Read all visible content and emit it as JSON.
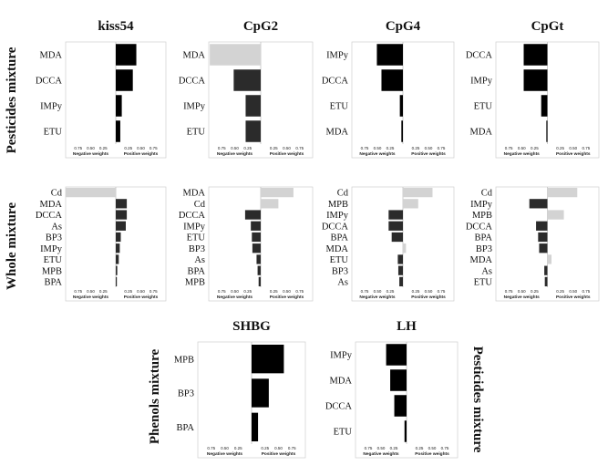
{
  "row_labels": {
    "pesticides": "Pesticides mixture",
    "whole": "Whole mixture",
    "phenols": "Phenols mixture",
    "pesticides_right": "Pesticides mixture"
  },
  "colors": {
    "negative": "#d3d3d3",
    "positive_light": "#d3d3d3"
  },
  "chart_data": [
    {
      "type": "bar",
      "orientation": "horizontal",
      "title": "kiss54",
      "categories": [
        "MDA",
        "DCCA",
        "IMPy",
        "ETU"
      ],
      "values": [
        0.41,
        0.34,
        0.12,
        0.09
      ],
      "colors": [
        "#000000",
        "#000000",
        "#000000",
        "#000000"
      ],
      "neg_ticks": [
        "0.75",
        "0.50",
        "0.25"
      ],
      "pos_ticks": [
        "0.25",
        "0.50",
        "0.75"
      ],
      "neg_label": "Negative weights",
      "pos_label": "Positive weights",
      "xlim": [
        -1,
        1
      ]
    },
    {
      "type": "bar",
      "orientation": "horizontal",
      "title": "CpG2",
      "categories": [
        "MDA",
        "DCCA",
        "IMPy",
        "ETU"
      ],
      "values": [
        -0.98,
        -0.52,
        -0.29,
        -0.29
      ],
      "colors": [
        "#d3d3d3",
        "#2b2b2b",
        "#2b2b2b",
        "#2b2b2b"
      ],
      "neg_ticks": [
        "0.75",
        "0.50",
        "0.25"
      ],
      "pos_ticks": [
        "0.25",
        "0.50",
        "0.75"
      ],
      "neg_label": "Negative weights",
      "pos_label": "Positive weights",
      "xlim": [
        -1,
        1
      ]
    },
    {
      "type": "bar",
      "orientation": "horizontal",
      "title": "CpG4",
      "categories": [
        "IMPy",
        "DCCA",
        "ETU",
        "MDA"
      ],
      "values": [
        -0.51,
        -0.42,
        -0.06,
        -0.03
      ],
      "colors": [
        "#000000",
        "#000000",
        "#000000",
        "#000000"
      ],
      "neg_ticks": [
        "0.75",
        "0.50",
        "0.25"
      ],
      "pos_ticks": [
        "0.25",
        "0.50",
        "0.75"
      ],
      "neg_label": "Negative weights",
      "pos_label": "Positive weights",
      "xlim": [
        -1,
        1
      ]
    },
    {
      "type": "bar",
      "orientation": "horizontal",
      "title": "CpGt",
      "categories": [
        "DCCA",
        "IMPy",
        "ETU",
        "MDA"
      ],
      "values": [
        -0.46,
        -0.46,
        -0.12,
        -0.02
      ],
      "colors": [
        "#000000",
        "#000000",
        "#000000",
        "#000000"
      ],
      "neg_ticks": [
        "0.75",
        "0.50",
        "0.25"
      ],
      "pos_ticks": [
        "0.25",
        "0.50",
        "0.75"
      ],
      "neg_label": "Negative weights",
      "pos_label": "Positive weights",
      "xlim": [
        -1,
        1
      ]
    },
    {
      "type": "bar",
      "orientation": "horizontal",
      "title": "",
      "categories": [
        "Cd",
        "MDA",
        "DCCA",
        "As",
        "BP3",
        "IMPy",
        "ETU",
        "MPB",
        "BPA"
      ],
      "values": [
        -1.0,
        0.22,
        0.22,
        0.2,
        0.1,
        0.08,
        0.06,
        0.03,
        0.01
      ],
      "colors": [
        "#d3d3d3",
        "#2b2b2b",
        "#2b2b2b",
        "#2b2b2b",
        "#2b2b2b",
        "#2b2b2b",
        "#2b2b2b",
        "#2b2b2b",
        "#2b2b2b"
      ],
      "neg_ticks": [
        "0.75",
        "0.50",
        "0.25"
      ],
      "pos_ticks": [
        "0.25",
        "0.50",
        "0.75"
      ],
      "neg_label": "Negative weights",
      "pos_label": "Positive weights",
      "xlim": [
        -1,
        1
      ]
    },
    {
      "type": "bar",
      "orientation": "horizontal",
      "title": "",
      "categories": [
        "MDA",
        "Cd",
        "DCCA",
        "IMPy",
        "ETU",
        "BP3",
        "As",
        "BPA",
        "MPB"
      ],
      "values": [
        0.63,
        0.34,
        -0.3,
        -0.19,
        -0.17,
        -0.16,
        -0.08,
        -0.06,
        -0.04
      ],
      "colors": [
        "#d3d3d3",
        "#d3d3d3",
        "#2b2b2b",
        "#2b2b2b",
        "#2b2b2b",
        "#2b2b2b",
        "#2b2b2b",
        "#2b2b2b",
        "#2b2b2b"
      ],
      "neg_ticks": [
        "0.75",
        "0.50",
        "0.25"
      ],
      "pos_ticks": [
        "0.25",
        "0.50",
        "0.75"
      ],
      "neg_label": "Negative weights",
      "pos_label": "Positive weights",
      "xlim": [
        -1,
        1
      ]
    },
    {
      "type": "bar",
      "orientation": "horizontal",
      "title": "",
      "categories": [
        "Cd",
        "MPB",
        "IMPy",
        "DCCA",
        "BPA",
        "MDA",
        "ETU",
        "BP3",
        "As"
      ],
      "values": [
        0.58,
        0.3,
        -0.28,
        -0.28,
        -0.22,
        0.06,
        -0.1,
        -0.09,
        -0.07
      ],
      "colors": [
        "#d3d3d3",
        "#d3d3d3",
        "#2b2b2b",
        "#2b2b2b",
        "#2b2b2b",
        "#d3d3d3",
        "#2b2b2b",
        "#2b2b2b",
        "#2b2b2b"
      ],
      "neg_ticks": [
        "0.75",
        "0.50",
        "0.25"
      ],
      "pos_ticks": [
        "0.25",
        "0.50",
        "0.75"
      ],
      "neg_label": "Negative weights",
      "pos_label": "Positive weights",
      "xlim": [
        -1,
        1
      ]
    },
    {
      "type": "bar",
      "orientation": "horizontal",
      "title": "",
      "categories": [
        "Cd",
        "IMPy",
        "MPB",
        "DCCA",
        "BPA",
        "BP3",
        "MDA",
        "As",
        "ETU"
      ],
      "values": [
        0.58,
        -0.35,
        0.32,
        -0.22,
        -0.18,
        -0.16,
        0.08,
        -0.06,
        -0.05
      ],
      "colors": [
        "#d3d3d3",
        "#2b2b2b",
        "#d3d3d3",
        "#2b2b2b",
        "#2b2b2b",
        "#2b2b2b",
        "#d3d3d3",
        "#2b2b2b",
        "#2b2b2b"
      ],
      "neg_ticks": [
        "0.75",
        "0.50",
        "0.25"
      ],
      "pos_ticks": [
        "0.25",
        "0.50",
        "0.75"
      ],
      "neg_label": "Negative weights",
      "pos_label": "Positive weights",
      "xlim": [
        -1,
        1
      ]
    },
    {
      "type": "bar",
      "orientation": "horizontal",
      "title": "SHBG",
      "categories": [
        "MPB",
        "BP3",
        "BPA"
      ],
      "values": [
        0.6,
        0.32,
        0.12
      ],
      "colors": [
        "#000000",
        "#000000",
        "#000000"
      ],
      "neg_ticks": [
        "0.75",
        "0.50",
        "0.25"
      ],
      "pos_ticks": [
        "0.25",
        "0.50",
        "0.75"
      ],
      "neg_label": "Negative weights",
      "pos_label": "Positive weights",
      "xlim": [
        -1,
        1
      ]
    },
    {
      "type": "bar",
      "orientation": "horizontal",
      "title": "LH",
      "categories": [
        "IMPy",
        "MDA",
        "DCCA",
        "ETU"
      ],
      "values": [
        -0.4,
        -0.32,
        -0.24,
        -0.04
      ],
      "colors": [
        "#000000",
        "#000000",
        "#000000",
        "#000000"
      ],
      "neg_ticks": [
        "0.75",
        "0.50",
        "0.25"
      ],
      "pos_ticks": [
        "0.25",
        "0.50",
        "0.75"
      ],
      "neg_label": "Negative weights",
      "pos_label": "Positive weights",
      "xlim": [
        -1,
        1
      ]
    }
  ]
}
